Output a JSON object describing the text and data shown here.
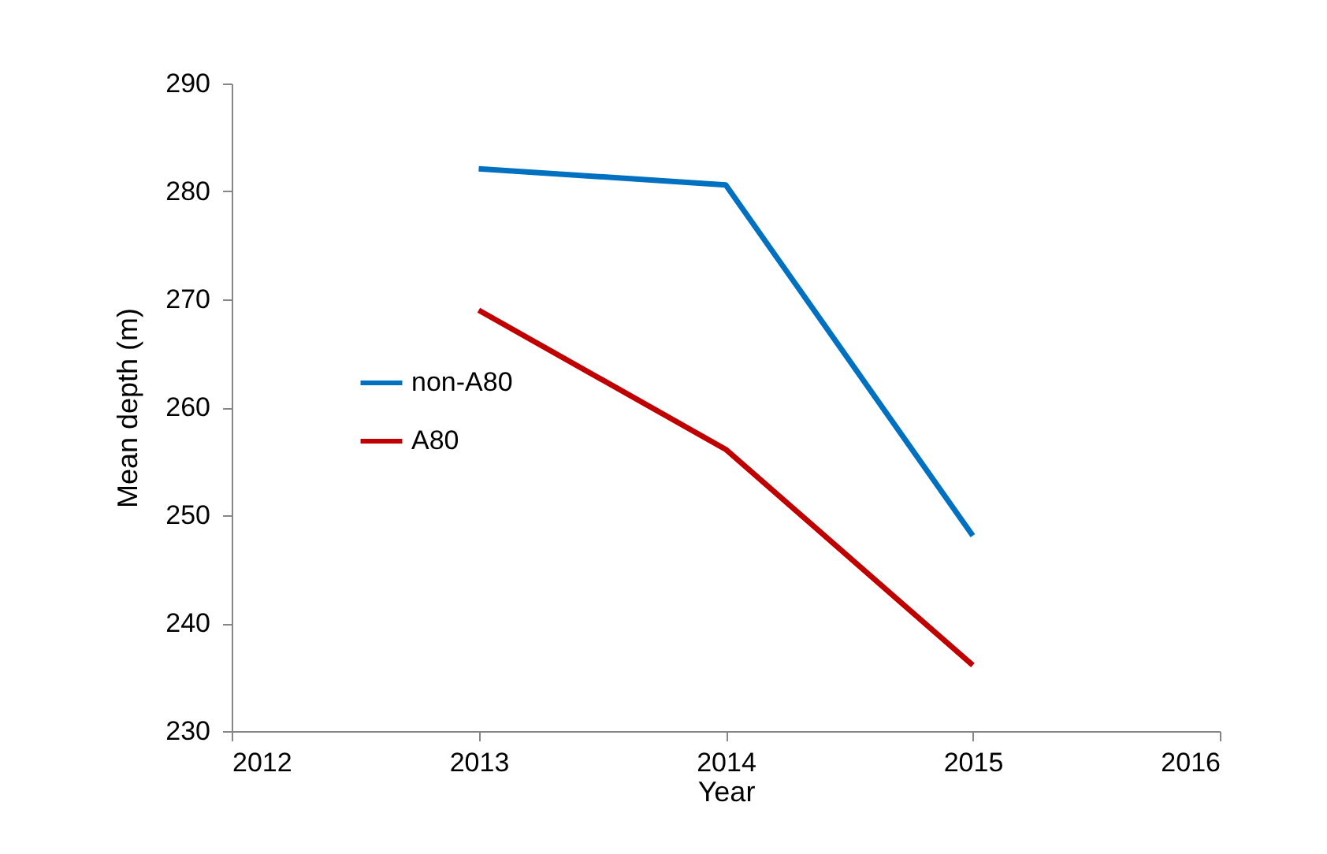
{
  "chart_data": {
    "type": "line",
    "xlabel": "Year",
    "ylabel": "Mean depth (m)",
    "x": [
      2013,
      2014,
      2015
    ],
    "series": [
      {
        "name": "non-A80",
        "color": "#0070c0",
        "values": [
          282.1,
          280.6,
          248.1
        ]
      },
      {
        "name": "A80",
        "color": "#c00000",
        "values": [
          269.0,
          256.1,
          236.1
        ]
      }
    ],
    "xlim": [
      2012,
      2016
    ],
    "xticks": [
      2012,
      2013,
      2014,
      2015,
      2016
    ],
    "ylim": [
      230,
      290
    ],
    "yticks": [
      230,
      240,
      250,
      260,
      270,
      280,
      290
    ],
    "grid": false,
    "legend": "left",
    "marker": "none",
    "line_style": "solid"
  }
}
